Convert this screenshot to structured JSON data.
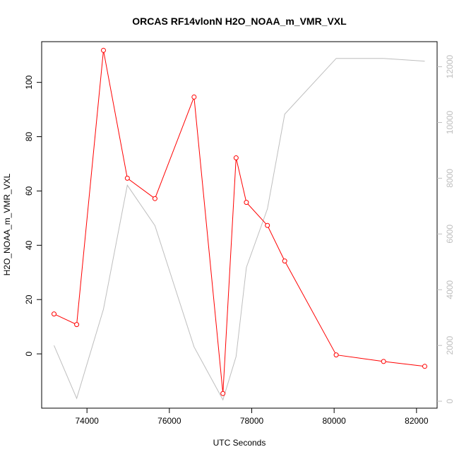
{
  "colors": {
    "primary_series": "#ff0000",
    "secondary_series": "#bebebe",
    "frame": "#000000",
    "right_axis": "#bebebe"
  },
  "chart_data": {
    "type": "line",
    "title": "ORCAS RF14vlonN H2O_NOAA_m_VMR_VXL",
    "xlabel": "UTC Seconds",
    "ylabel": "H2O_NOAA_m_VMR_VXL",
    "xlim": [
      72900,
      82500
    ],
    "ylim": [
      -20,
      115
    ],
    "y2lim": [
      -250,
      12900
    ],
    "x_ticks": [
      74000,
      76000,
      78000,
      80000,
      82000
    ],
    "y_ticks": [
      0,
      20,
      40,
      60,
      80,
      100
    ],
    "y2_ticks": [
      0,
      2000,
      4000,
      6000,
      8000,
      10000,
      12000
    ],
    "grid": false,
    "series": [
      {
        "axis": "left",
        "style": "line-with-open-circles",
        "color": "#ff0000",
        "x": [
          73200,
          73750,
          74400,
          74980,
          75650,
          76600,
          77300,
          77620,
          77870,
          78380,
          78800,
          80050,
          81200,
          82200
        ],
        "y": [
          14.7,
          10.8,
          111.8,
          64.7,
          57.2,
          94.6,
          -14.6,
          72.2,
          55.8,
          47.3,
          34.2,
          -0.4,
          -2.8,
          -4.6
        ]
      },
      {
        "axis": "right",
        "style": "line",
        "color": "#bebebe",
        "x": [
          73200,
          73750,
          74400,
          74980,
          75650,
          76600,
          77300,
          77620,
          77870,
          78380,
          78800,
          80050,
          81200,
          82200
        ],
        "y": [
          2000,
          100,
          3300,
          7750,
          6300,
          1950,
          50,
          1600,
          4800,
          6900,
          10300,
          12300,
          12300,
          12200
        ]
      }
    ]
  }
}
